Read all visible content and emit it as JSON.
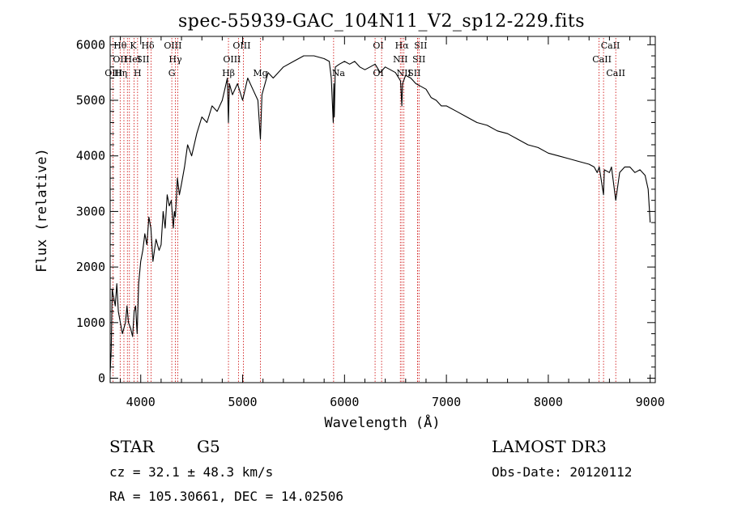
{
  "chart_data": {
    "type": "line",
    "title": "spec-55939-GAC_104N11_V2_sp12-229.fits",
    "xlabel": "Wavelength (Å)",
    "ylabel": "Flux (relative)",
    "xlim": [
      3700,
      9050
    ],
    "ylim": [
      -80,
      6150
    ],
    "xticks": [
      4000,
      5000,
      6000,
      7000,
      8000,
      9000
    ],
    "yticks": [
      0,
      1000,
      2000,
      3000,
      4000,
      5000,
      6000
    ],
    "series": [
      {
        "name": "spectrum",
        "x": [
          3700,
          3710,
          3720,
          3735,
          3750,
          3765,
          3780,
          3800,
          3820,
          3835,
          3850,
          3865,
          3880,
          3900,
          3920,
          3935,
          3950,
          3965,
          3980,
          4000,
          4020,
          4040,
          4060,
          4080,
          4100,
          4120,
          4150,
          4180,
          4200,
          4220,
          4240,
          4260,
          4280,
          4300,
          4320,
          4330,
          4340,
          4360,
          4380,
          4400,
          4430,
          4460,
          4500,
          4550,
          4600,
          4650,
          4700,
          4750,
          4800,
          4850,
          4861,
          4870,
          4900,
          4950,
          5000,
          5050,
          5100,
          5150,
          5175,
          5190,
          5250,
          5300,
          5400,
          5500,
          5600,
          5700,
          5800,
          5850,
          5870,
          5889,
          5895,
          5900,
          5910,
          5950,
          6000,
          6050,
          6100,
          6150,
          6200,
          6250,
          6300,
          6350,
          6400,
          6450,
          6500,
          6550,
          6563,
          6570,
          6600,
          6650,
          6700,
          6750,
          6800,
          6850,
          6900,
          6950,
          7000,
          7100,
          7200,
          7300,
          7400,
          7500,
          7600,
          7700,
          7800,
          7900,
          8000,
          8100,
          8200,
          8300,
          8400,
          8450,
          8480,
          8500,
          8542,
          8550,
          8600,
          8620,
          8662,
          8700,
          8750,
          8800,
          8850,
          8900,
          8950,
          8980,
          9000
        ],
        "values": [
          100,
          500,
          1600,
          1450,
          1300,
          1700,
          1200,
          1000,
          800,
          900,
          1000,
          1300,
          1000,
          900,
          750,
          1200,
          1300,
          800,
          1700,
          2100,
          2300,
          2600,
          2400,
          2900,
          2700,
          2100,
          2500,
          2300,
          2400,
          3000,
          2700,
          3300,
          3100,
          3200,
          2700,
          3000,
          2900,
          3600,
          3300,
          3500,
          3800,
          4200,
          4000,
          4400,
          4700,
          4600,
          4900,
          4800,
          5000,
          5400,
          4600,
          5300,
          5100,
          5300,
          5000,
          5400,
          5200,
          5000,
          4300,
          5100,
          5500,
          5400,
          5600,
          5700,
          5800,
          5800,
          5750,
          5700,
          5400,
          4600,
          5300,
          4700,
          5600,
          5650,
          5700,
          5650,
          5700,
          5600,
          5550,
          5600,
          5650,
          5500,
          5600,
          5550,
          5500,
          5350,
          4900,
          5300,
          5450,
          5400,
          5300,
          5250,
          5200,
          5050,
          5000,
          4900,
          4900,
          4800,
          4700,
          4600,
          4550,
          4450,
          4400,
          4300,
          4200,
          4150,
          4050,
          4000,
          3950,
          3900,
          3850,
          3800,
          3700,
          3800,
          3300,
          3750,
          3700,
          3800,
          3200,
          3700,
          3800,
          3800,
          3700,
          3750,
          3650,
          3400,
          2800
        ]
      }
    ],
    "spectral_lines": [
      {
        "label": "Hθ",
        "wavelength": 3798,
        "row": 0,
        "anchor": "middle",
        "dx": 0
      },
      {
        "label": "OII",
        "wavelength": 3727,
        "row": 1,
        "anchor": "start",
        "dx": 0
      },
      {
        "label": "OIII",
        "wavelength": 3869,
        "row": 2,
        "anchor": "end",
        "dx": -6
      },
      {
        "label": "Hη",
        "wavelength": 3835,
        "row": 2,
        "anchor": "middle",
        "dx": -4
      },
      {
        "label": "K",
        "wavelength": 3934,
        "row": 0,
        "anchor": "middle",
        "dx": -1
      },
      {
        "label": "HeI",
        "wavelength": 3889,
        "row": 1,
        "anchor": "middle",
        "dx": 4
      },
      {
        "label": "SII",
        "wavelength": 4070,
        "row": 1,
        "anchor": "end",
        "dx": 2
      },
      {
        "label": "H",
        "wavelength": 3969,
        "row": 2,
        "anchor": "middle",
        "dx": 0
      },
      {
        "label": "Hδ",
        "wavelength": 4102,
        "row": 0,
        "anchor": "middle",
        "dx": -4
      },
      {
        "label": "OIII",
        "wavelength": 4363,
        "row": 0,
        "anchor": "middle",
        "dx": -6
      },
      {
        "label": "Hγ",
        "wavelength": 4340,
        "row": 1,
        "anchor": "middle",
        "dx": 0
      },
      {
        "label": "G",
        "wavelength": 4305,
        "row": 2,
        "anchor": "middle",
        "dx": 0
      },
      {
        "label": "Hβ",
        "wavelength": 4861,
        "row": 2,
        "anchor": "middle",
        "dx": 0
      },
      {
        "label": "OIII",
        "wavelength": 4959,
        "row": 1,
        "anchor": "middle",
        "dx": -8
      },
      {
        "label": "OIII",
        "wavelength": 5007,
        "row": 0,
        "anchor": "middle",
        "dx": -2
      },
      {
        "label": "Mg",
        "wavelength": 5175,
        "row": 2,
        "anchor": "middle",
        "dx": 0
      },
      {
        "label": "Na",
        "wavelength": 5893,
        "row": 2,
        "anchor": "middle",
        "dx": 6
      },
      {
        "label": "OI",
        "wavelength": 6300,
        "row": 0,
        "anchor": "middle",
        "dx": 4
      },
      {
        "label": "OI",
        "wavelength": 6364,
        "row": 2,
        "anchor": "middle",
        "dx": -4
      },
      {
        "label": "Hα",
        "wavelength": 6563,
        "row": 0,
        "anchor": "middle",
        "dx": 0
      },
      {
        "label": "NII",
        "wavelength": 6548,
        "row": 1,
        "anchor": "middle",
        "dx": 0
      },
      {
        "label": "NII",
        "wavelength": 6583,
        "row": 2,
        "anchor": "middle",
        "dx": 0
      },
      {
        "label": "SII",
        "wavelength": 6716,
        "row": 0,
        "anchor": "middle",
        "dx": 4
      },
      {
        "label": "SII",
        "wavelength": 6731,
        "row": 1,
        "anchor": "middle",
        "dx": 0
      },
      {
        "label": "SII",
        "wavelength": 6716,
        "row": 2,
        "anchor": "middle",
        "dx": -4
      },
      {
        "label": "CaII",
        "wavelength": 8498,
        "row": 0,
        "anchor": "middle",
        "dx": 14
      },
      {
        "label": "CaII",
        "wavelength": 8542,
        "row": 1,
        "anchor": "middle",
        "dx": -2
      },
      {
        "label": "CaII",
        "wavelength": 8662,
        "row": 2,
        "anchor": "middle",
        "dx": 0
      }
    ]
  },
  "info": {
    "object_class": "STAR",
    "subclass": "G5",
    "survey": "LAMOST DR3",
    "redshift": "cz = 32.1 ± 48.3 km/s",
    "obs_date": "Obs-Date: 20120112",
    "coords": "RA = 105.30661, DEC =  14.02506"
  }
}
